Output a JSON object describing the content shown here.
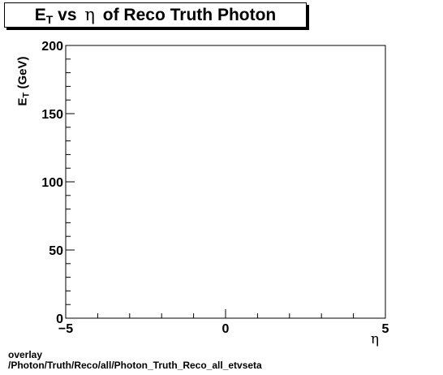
{
  "chart_data": {
    "type": "scatter",
    "title": {
      "prefix": "E",
      "sub": "T",
      "mid": " vs ",
      "eta": "η",
      "suffix": " of Reco Truth Photon"
    },
    "xlabel": "η",
    "ylabel": {
      "prefix": "E",
      "sub": "T",
      "suffix": " (GeV)"
    },
    "xlim": [
      -5,
      5
    ],
    "ylim": [
      0,
      200
    ],
    "x_ticks": [
      "−5",
      "0",
      "5"
    ],
    "y_ticks": [
      "0",
      "50",
      "100",
      "150",
      "200"
    ],
    "points": [],
    "grid": false
  },
  "footer": {
    "line1": "overlay",
    "line2": "/Photon/Truth/Reco/all/Photon_Truth_Reco_all_etvseta"
  }
}
